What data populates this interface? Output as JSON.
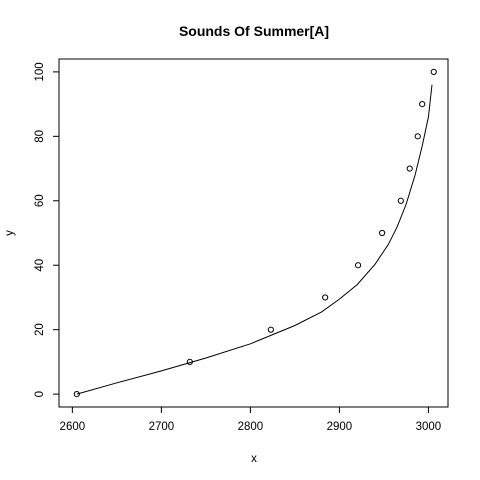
{
  "chart_data": {
    "type": "scatter",
    "title": "Sounds Of Summer[A]",
    "xlabel": "x",
    "ylabel": "y",
    "xlim": [
      2585,
      3022
    ],
    "ylim": [
      -4,
      104
    ],
    "x_ticks": [
      2600,
      2700,
      2800,
      2900,
      3000
    ],
    "x_tick_labels": [
      "2600",
      "2700",
      "2800",
      "2900",
      "3000"
    ],
    "y_ticks": [
      0,
      20,
      40,
      60,
      80,
      100
    ],
    "y_tick_labels": [
      "0",
      "20",
      "40",
      "60",
      "80",
      "100"
    ],
    "grid": false,
    "points": {
      "x": [
        2605,
        2732,
        2823,
        2884,
        2921,
        2948,
        2969,
        2979,
        2988,
        2993,
        3006
      ],
      "y": [
        0,
        10,
        20,
        30,
        40,
        50,
        60,
        70,
        80,
        90,
        100
      ]
    },
    "fit_curve": {
      "x": [
        2605,
        2650,
        2700,
        2750,
        2800,
        2850,
        2880,
        2900,
        2920,
        2940,
        2955,
        2965,
        2975,
        2985,
        2993,
        3000,
        3004
      ],
      "y": [
        0,
        3.5,
        7.2,
        11.2,
        15.6,
        21.3,
        25.5,
        29.5,
        34.0,
        40.3,
        46.5,
        52.0,
        59.0,
        68.0,
        77.0,
        86.0,
        96.0
      ]
    }
  }
}
